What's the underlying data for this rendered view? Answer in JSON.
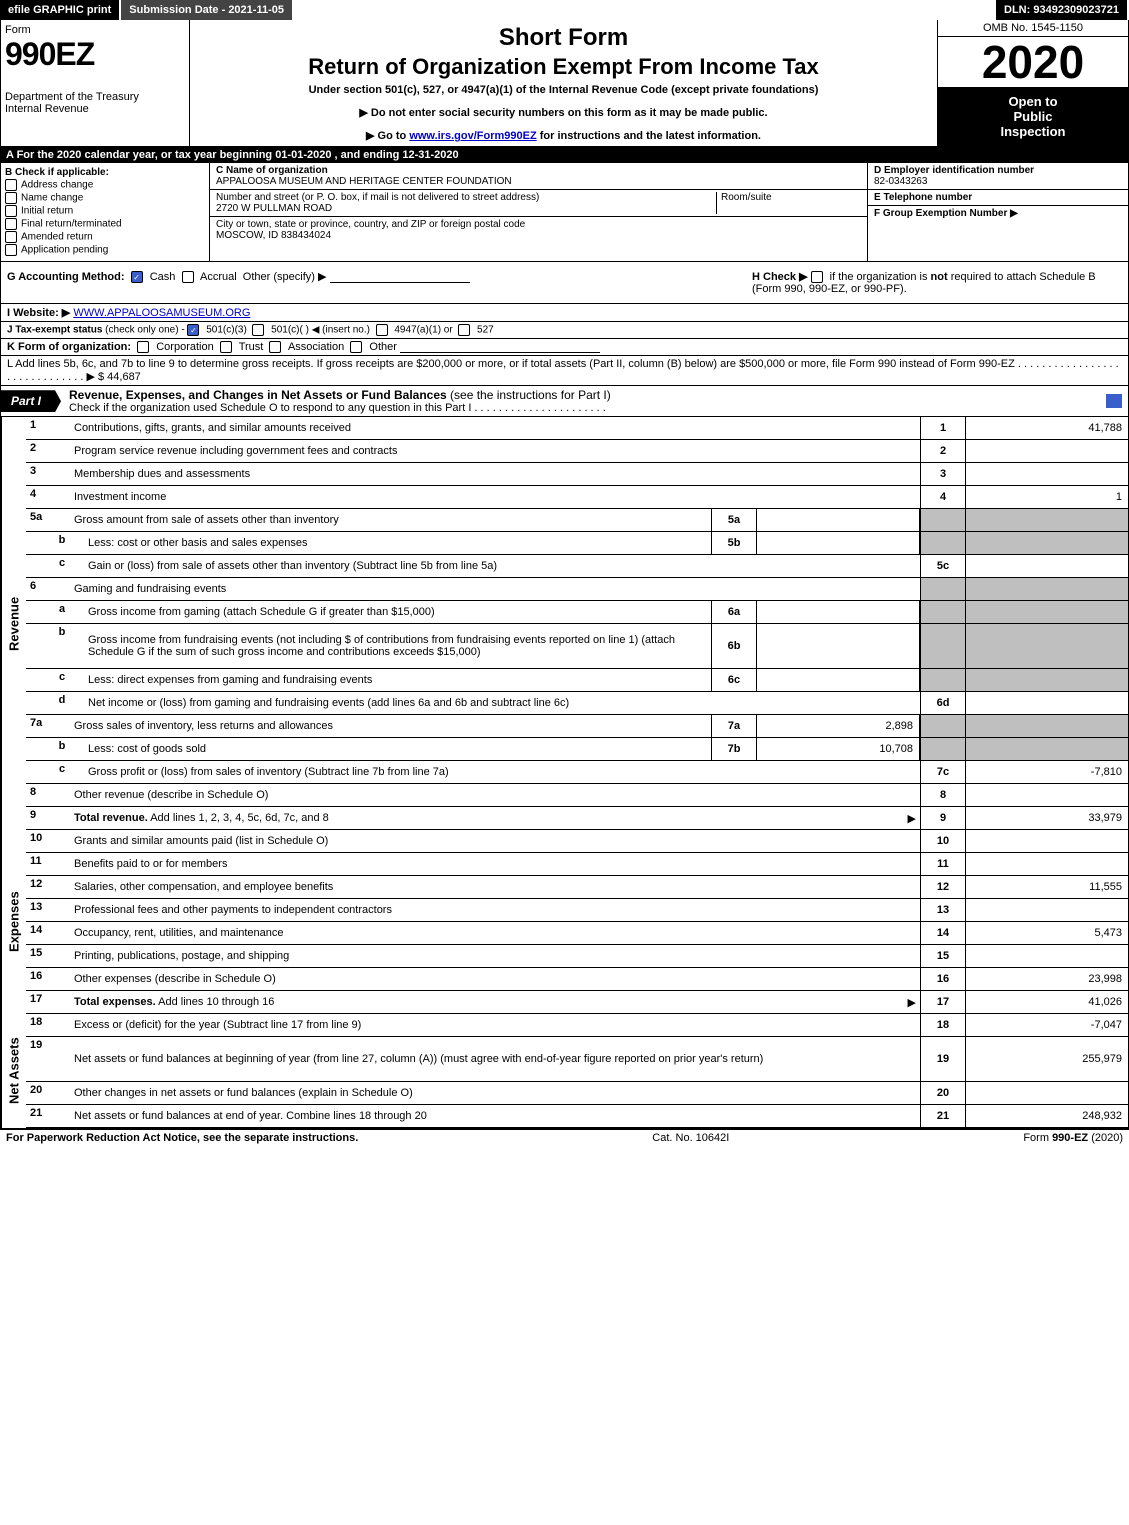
{
  "topbar": {
    "efile": "efile GRAPHIC print",
    "submission": "Submission Date - 2021-11-05",
    "dln": "DLN: 93492309023721"
  },
  "header": {
    "form_word": "Form",
    "form_number": "990EZ",
    "dept": "Department of the Treasury",
    "irs": "Internal Revenue",
    "short": "Short Form",
    "return": "Return of Organization Exempt From Income Tax",
    "undersec": "Under section 501(c), 527, or 4947(a)(1) of the Internal Revenue Code (except private foundations)",
    "note1": "▶ Do not enter social security numbers on this form as it may be made public.",
    "note2": "▶ Go to ",
    "note2_link": "www.irs.gov/Form990EZ",
    "note2_tail": " for instructions and the latest information.",
    "omb": "OMB No. 1545-1150",
    "year": "2020",
    "inspect1": "Open to",
    "inspect2": "Public",
    "inspect3": "Inspection"
  },
  "lineA": "A For the 2020 calendar year, or tax year beginning 01-01-2020 , and ending 12-31-2020",
  "sectionB": {
    "header": "B  Check if applicable:",
    "opts": [
      "Address change",
      "Name change",
      "Initial return",
      "Final return/terminated",
      "Amended return",
      "Application pending"
    ]
  },
  "sectionC": {
    "name_label": "C Name of organization",
    "name": "APPALOOSA MUSEUM AND HERITAGE CENTER FOUNDATION",
    "addr_label": "Number and street (or P. O. box, if mail is not delivered to street address)",
    "addr": "2720 W PULLMAN ROAD",
    "room_label": "Room/suite",
    "city_label": "City or town, state or province, country, and ZIP or foreign postal code",
    "city": "MOSCOW, ID  838434024"
  },
  "sectionD": {
    "label": "D Employer identification number",
    "val": "82-0343263"
  },
  "sectionE": {
    "label": "E Telephone number",
    "val": ""
  },
  "sectionF": {
    "label": "F Group Exemption Number  ▶",
    "val": ""
  },
  "rowG": {
    "label": "G Accounting Method:",
    "cash": "Cash",
    "accrual": "Accrual",
    "other": "Other (specify) ▶"
  },
  "rowH": {
    "text1": "H  Check ▶ ",
    "text2": " if the organization is ",
    "notword": "not",
    "text3": " required to attach Schedule B",
    "text4": "(Form 990, 990-EZ, or 990-PF)."
  },
  "rowI": {
    "label": "I Website: ▶",
    "val": "WWW.APPALOOSAMUSEUM.ORG"
  },
  "rowJ": {
    "label": "J Tax-exempt status",
    "sub": " (check only one) - ",
    "o1": "501(c)(3)",
    "o2": "501(c)(  ) ◀ (insert no.)",
    "o3": "4947(a)(1) or",
    "o4": "527"
  },
  "rowK": {
    "label": "K Form of organization:",
    "opts": [
      "Corporation",
      "Trust",
      "Association",
      "Other"
    ]
  },
  "rowL": {
    "text": "L Add lines 5b, 6c, and 7b to line 9 to determine gross receipts. If gross receipts are $200,000 or more, or if total assets (Part II, column (B) below) are $500,000 or more, file Form 990 instead of Form 990-EZ  .  .  .  .  .  .  .  .  .  .  .  .  .  .  .  .  .  .  .  .  .  .  .  .  .  .  .  .  .  . ▶ $",
    "val": "44,687"
  },
  "part1": {
    "tag": "Part I",
    "title": "Revenue, Expenses, and Changes in Net Assets or Fund Balances",
    "title_paren": " (see the instructions for Part I)",
    "sub": "Check if the organization used Schedule O to respond to any question in this Part I  .  .  .  .  .  .  .  .  .  .  .  .  .  .  .  .  .  .  .  .  .  ."
  },
  "revenue": {
    "label": "Revenue",
    "rows": [
      {
        "n": "1",
        "d": "Contributions, gifts, grants, and similar amounts received",
        "rn": "1",
        "rv": "41,788"
      },
      {
        "n": "2",
        "d": "Program service revenue including government fees and contracts",
        "rn": "2",
        "rv": ""
      },
      {
        "n": "3",
        "d": "Membership dues and assessments",
        "rn": "3",
        "rv": ""
      },
      {
        "n": "4",
        "d": "Investment income",
        "rn": "4",
        "rv": "1"
      },
      {
        "n": "5a",
        "d": "Gross amount from sale of assets other than inventory",
        "mn": "5a",
        "mv": "",
        "shaded": true
      },
      {
        "n": "b",
        "sub": true,
        "d": "Less: cost or other basis and sales expenses",
        "mn": "5b",
        "mv": "",
        "shaded": true
      },
      {
        "n": "c",
        "sub": true,
        "d": "Gain or (loss) from sale of assets other than inventory (Subtract line 5b from line 5a)",
        "rn": "5c",
        "rv": ""
      },
      {
        "n": "6",
        "d": "Gaming and fundraising events",
        "shaded": true,
        "noval": true
      },
      {
        "n": "a",
        "sub": true,
        "d": "Gross income from gaming (attach Schedule G if greater than $15,000)",
        "mn": "6a",
        "mv": "",
        "shaded": true
      },
      {
        "n": "b",
        "sub": true,
        "d": "Gross income from fundraising events (not including $                        of contributions from fundraising events reported on line 1) (attach Schedule G if the sum of such gross income and contributions exceeds $15,000)",
        "mn": "6b",
        "mv": "",
        "shaded": true,
        "tall": true
      },
      {
        "n": "c",
        "sub": true,
        "d": "Less: direct expenses from gaming and fundraising events",
        "mn": "6c",
        "mv": "",
        "shaded": true
      },
      {
        "n": "d",
        "sub": true,
        "d": "Net income or (loss) from gaming and fundraising events (add lines 6a and 6b and subtract line 6c)",
        "rn": "6d",
        "rv": ""
      },
      {
        "n": "7a",
        "d": "Gross sales of inventory, less returns and allowances",
        "mn": "7a",
        "mv": "2,898",
        "shaded": true
      },
      {
        "n": "b",
        "sub": true,
        "d": "Less: cost of goods sold",
        "mn": "7b",
        "mv": "10,708",
        "shaded": true
      },
      {
        "n": "c",
        "sub": true,
        "d": "Gross profit or (loss) from sales of inventory (Subtract line 7b from line 7a)",
        "rn": "7c",
        "rv": "-7,810"
      },
      {
        "n": "8",
        "d": "Other revenue (describe in Schedule O)",
        "rn": "8",
        "rv": ""
      },
      {
        "n": "9",
        "d": "Total revenue. Add lines 1, 2, 3, 4, 5c, 6d, 7c, and 8",
        "rn": "9",
        "rv": "33,979",
        "bold": true,
        "arrow": true
      }
    ]
  },
  "expenses": {
    "label": "Expenses",
    "rows": [
      {
        "n": "10",
        "d": "Grants and similar amounts paid (list in Schedule O)",
        "rn": "10",
        "rv": ""
      },
      {
        "n": "11",
        "d": "Benefits paid to or for members",
        "rn": "11",
        "rv": ""
      },
      {
        "n": "12",
        "d": "Salaries, other compensation, and employee benefits",
        "rn": "12",
        "rv": "11,555"
      },
      {
        "n": "13",
        "d": "Professional fees and other payments to independent contractors",
        "rn": "13",
        "rv": ""
      },
      {
        "n": "14",
        "d": "Occupancy, rent, utilities, and maintenance",
        "rn": "14",
        "rv": "5,473"
      },
      {
        "n": "15",
        "d": "Printing, publications, postage, and shipping",
        "rn": "15",
        "rv": ""
      },
      {
        "n": "16",
        "d": "Other expenses (describe in Schedule O)",
        "rn": "16",
        "rv": "23,998"
      },
      {
        "n": "17",
        "d": "Total expenses. Add lines 10 through 16",
        "rn": "17",
        "rv": "41,026",
        "bold": true,
        "arrow": true
      }
    ]
  },
  "netassets": {
    "label": "Net Assets",
    "rows": [
      {
        "n": "18",
        "d": "Excess or (deficit) for the year (Subtract line 17 from line 9)",
        "rn": "18",
        "rv": "-7,047"
      },
      {
        "n": "19",
        "d": "Net assets or fund balances at beginning of year (from line 27, column (A)) (must agree with end-of-year figure reported on prior year's return)",
        "rn": "19",
        "rv": "255,979",
        "tall": true
      },
      {
        "n": "20",
        "d": "Other changes in net assets or fund balances (explain in Schedule O)",
        "rn": "20",
        "rv": ""
      },
      {
        "n": "21",
        "d": "Net assets or fund balances at end of year. Combine lines 18 through 20",
        "rn": "21",
        "rv": "248,932"
      }
    ]
  },
  "footer": {
    "left": "For Paperwork Reduction Act Notice, see the separate instructions.",
    "mid": "Cat. No. 10642I",
    "right_pre": "Form ",
    "right_bold": "990-EZ",
    "right_post": " (2020)"
  },
  "colors": {
    "black": "#000000",
    "white": "#ffffff",
    "shaded": "#bfbfbf",
    "check_blue": "#3a5fcd"
  }
}
